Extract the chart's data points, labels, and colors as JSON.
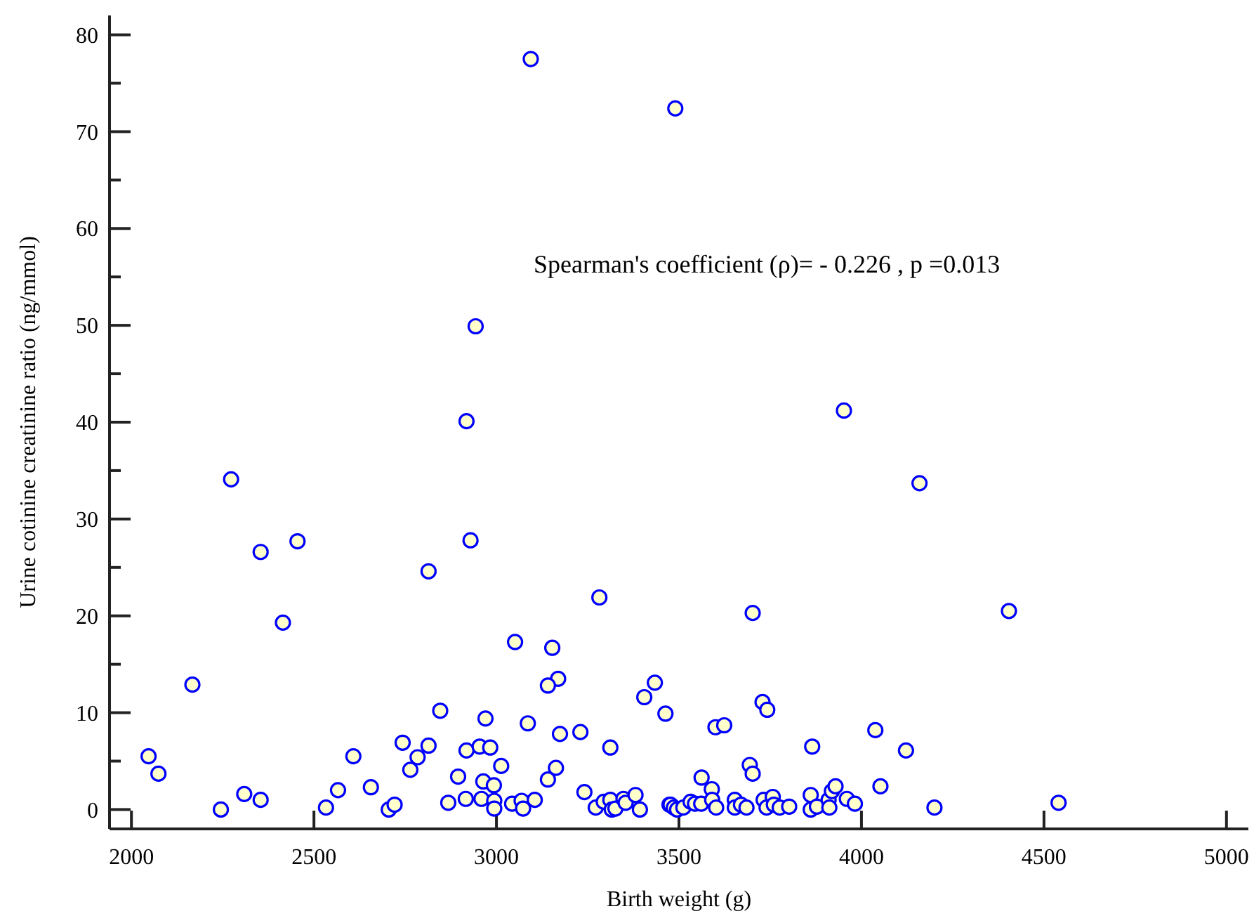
{
  "chart_data": {
    "type": "scatter",
    "xlabel": "Birth weight (g)",
    "ylabel": "Urine cotinine creatinine ratio (ng/mmol)",
    "annotations": [
      "Spearman's coefficient (ρ)= - 0.226 , p =0.013"
    ],
    "xlim": [
      1940,
      5060
    ],
    "ylim": [
      -2,
      82
    ],
    "xticks": [
      2000,
      2500,
      3000,
      3500,
      4000,
      4500,
      5000
    ],
    "yticks": [
      0,
      {
        "value": 5,
        "label": null
      },
      10,
      {
        "value": 15,
        "label": null
      },
      20,
      {
        "value": 25,
        "label": null
      },
      30,
      {
        "value": 35,
        "label": null
      },
      40,
      {
        "value": 45,
        "label": null
      },
      50,
      {
        "value": 55,
        "label": null
      },
      60,
      {
        "value": 65,
        "label": null
      },
      70,
      {
        "value": 75,
        "label": null
      },
      80
    ],
    "marker": "circle",
    "series": [
      {
        "color": "#0000ff",
        "x": [
          3094,
          3490,
          2943,
          2918,
          3952,
          2273,
          4159,
          2354,
          2455,
          2929,
          2814,
          3282,
          2415,
          3051,
          3153,
          3702,
          4404,
          2167,
          3169,
          3141,
          3434,
          3405,
          3463,
          2846,
          2970,
          3086,
          3174,
          3230,
          3600,
          3624,
          3729,
          3742,
          4038,
          4122,
          3865,
          2047,
          2074,
          2245,
          2309,
          2354,
          2533,
          2566,
          2608,
          2656,
          2705,
          2721,
          2743,
          2784,
          2764,
          2814,
          2868,
          2895,
          2918,
          2916,
          2954,
          2983,
          2959,
          2964,
          2993,
          2994,
          2994,
          3013,
          3043,
          3069,
          3073,
          3105,
          3163,
          3141,
          3241,
          3312,
          3272,
          3294,
          3312,
          3316,
          3326,
          3348,
          3354,
          3381,
          3393,
          3474,
          3477,
          3486,
          3495,
          3512,
          3532,
          3544,
          3561,
          3562,
          3590,
          3591,
          3602,
          3653,
          3653,
          3670,
          3685,
          3694,
          3702,
          3732,
          3740,
          3757,
          3760,
          3776,
          3802,
          3861,
          3861,
          3878,
          3910,
          3912,
          3919,
          3929,
          3960,
          3982,
          4052,
          4200,
          4540
        ],
        "values": [
          77.5,
          72.4,
          49.9,
          40.1,
          41.2,
          34.1,
          33.7,
          26.6,
          27.7,
          27.8,
          24.6,
          21.9,
          19.3,
          17.3,
          16.7,
          20.3,
          20.5,
          12.9,
          13.5,
          12.8,
          13.1,
          11.6,
          9.9,
          10.2,
          9.4,
          8.9,
          7.8,
          8.0,
          8.5,
          8.7,
          11.1,
          10.3,
          8.2,
          6.1,
          6.5,
          5.5,
          3.7,
          0.0,
          1.6,
          1.0,
          0.2,
          2.0,
          5.5,
          2.3,
          0.0,
          0.5,
          6.9,
          5.4,
          4.1,
          6.6,
          0.7,
          3.4,
          6.1,
          1.1,
          6.5,
          6.4,
          1.1,
          2.9,
          2.5,
          0.9,
          0.1,
          4.5,
          0.6,
          0.9,
          0.1,
          1.0,
          4.3,
          3.1,
          1.8,
          6.4,
          0.2,
          0.8,
          1.0,
          0.0,
          0.1,
          1.1,
          0.7,
          1.5,
          0.0,
          0.5,
          0.5,
          0.2,
          0.0,
          0.2,
          0.8,
          0.6,
          0.6,
          3.3,
          2.1,
          1.0,
          0.2,
          1.0,
          0.2,
          0.5,
          0.2,
          4.6,
          3.7,
          1.0,
          0.2,
          1.3,
          0.5,
          0.2,
          0.3,
          1.5,
          0.0,
          0.3,
          1.0,
          0.2,
          1.9,
          2.4,
          1.1,
          0.6,
          2.4,
          0.2,
          0.7
        ]
      }
    ]
  }
}
